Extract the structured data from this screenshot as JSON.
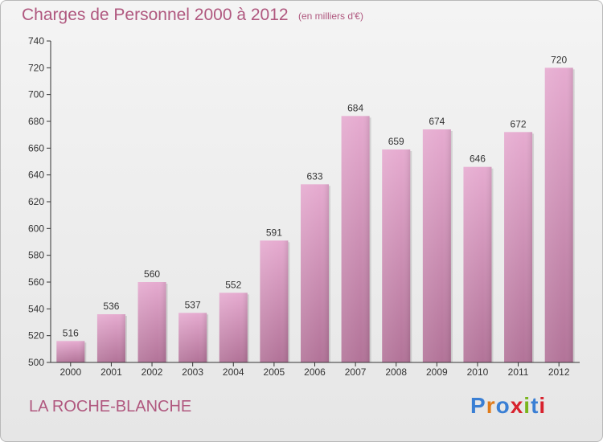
{
  "chart_data": {
    "type": "bar",
    "title": "Charges de Personnel 2000 à 2012",
    "subtitle": "(en milliers d'€)",
    "xlabel": "",
    "ylabel": "",
    "categories": [
      "2000",
      "2001",
      "2002",
      "2003",
      "2004",
      "2005",
      "2006",
      "2007",
      "2008",
      "2009",
      "2010",
      "2011",
      "2012"
    ],
    "values": [
      516,
      536,
      560,
      537,
      552,
      591,
      633,
      684,
      659,
      674,
      646,
      672,
      720
    ],
    "data_labels": [
      "516",
      "536",
      "560",
      "537",
      "552",
      "591",
      "633",
      "684",
      "659",
      "674",
      "646",
      "672",
      "720"
    ],
    "ylim": [
      500,
      740
    ],
    "yticks": [
      500,
      520,
      540,
      560,
      580,
      600,
      620,
      640,
      660,
      680,
      700,
      720,
      740
    ],
    "grid": false,
    "legend": "none"
  },
  "location": "LA ROCHE-BLANCHE",
  "logo": {
    "text": "Proxiti",
    "colors": [
      "#3a7fd4",
      "#e07b1a",
      "#3a7fd4",
      "#d8222e",
      "#7ab51d",
      "#3a7fd4",
      "#d8222e"
    ]
  },
  "colors": {
    "title": "#b0587f",
    "bar_top": "#e6abd0",
    "bar_bottom": "#b27398",
    "axis": "#333333"
  }
}
